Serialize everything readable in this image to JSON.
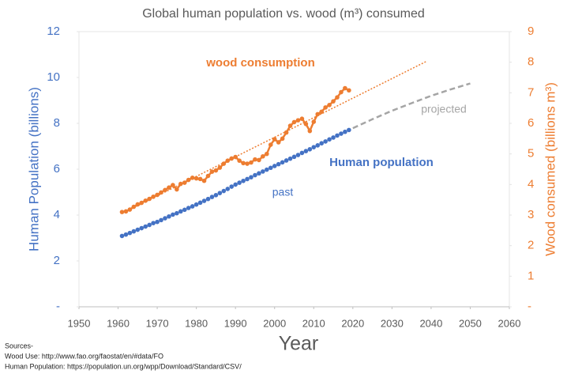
{
  "chart_data": {
    "type": "line",
    "title": "Global human population vs. wood (m³) consumed",
    "xlabel": "Year",
    "ylabel": "Human Population (billions)",
    "y2label": "Wood consumed (billions m³)",
    "xlim": [
      1950,
      2060
    ],
    "xticks": [
      1950,
      1960,
      1970,
      1980,
      1990,
      2000,
      2010,
      2020,
      2030,
      2040,
      2050,
      2060
    ],
    "ylim": [
      0,
      12
    ],
    "yticks": [
      {
        "value": 0,
        "label": "-"
      },
      2,
      4,
      6,
      8,
      10,
      12
    ],
    "y2lim": [
      0,
      9
    ],
    "y2ticks": [
      {
        "value": 0,
        "label": "-"
      },
      1,
      2,
      3,
      4,
      5,
      6,
      7,
      8,
      9
    ],
    "grid": false,
    "annotations": [
      "past"
    ],
    "series": [
      {
        "name": "Human population",
        "color": "#4472c4",
        "line_style": "none",
        "markers": true,
        "x": [
          1961,
          1962,
          1963,
          1964,
          1965,
          1966,
          1967,
          1968,
          1969,
          1970,
          1971,
          1972,
          1973,
          1974,
          1975,
          1976,
          1977,
          1978,
          1979,
          1980,
          1981,
          1982,
          1983,
          1984,
          1985,
          1986,
          1987,
          1988,
          1989,
          1990,
          1991,
          1992,
          1993,
          1994,
          1995,
          1996,
          1997,
          1998,
          1999,
          2000,
          2001,
          2002,
          2003,
          2004,
          2005,
          2006,
          2007,
          2008,
          2009,
          2010,
          2011,
          2012,
          2013,
          2014,
          2015,
          2016,
          2017,
          2018,
          2019
        ],
        "values": [
          3.09,
          3.15,
          3.22,
          3.29,
          3.36,
          3.43,
          3.5,
          3.57,
          3.65,
          3.7,
          3.78,
          3.86,
          3.94,
          4.02,
          4.08,
          4.16,
          4.23,
          4.31,
          4.38,
          4.46,
          4.54,
          4.62,
          4.7,
          4.79,
          4.87,
          4.96,
          5.05,
          5.14,
          5.24,
          5.33,
          5.41,
          5.49,
          5.57,
          5.65,
          5.74,
          5.82,
          5.9,
          5.98,
          6.06,
          6.14,
          6.22,
          6.3,
          6.38,
          6.46,
          6.54,
          6.62,
          6.71,
          6.79,
          6.87,
          6.96,
          7.04,
          7.13,
          7.21,
          7.3,
          7.38,
          7.47,
          7.55,
          7.63,
          7.71
        ]
      },
      {
        "name": "projected",
        "color": "#a5a5a5",
        "line_style": "dashed",
        "markers": false,
        "x": [
          2020,
          2025,
          2030,
          2035,
          2040,
          2045,
          2050
        ],
        "values": [
          7.79,
          8.18,
          8.55,
          8.88,
          9.2,
          9.48,
          9.74
        ]
      },
      {
        "name": "wood consumption",
        "color": "#ed7d31",
        "line_style": "solid",
        "markers": true,
        "axis": "y2",
        "x": [
          1961,
          1962,
          1963,
          1964,
          1965,
          1966,
          1967,
          1968,
          1969,
          1970,
          1971,
          1972,
          1973,
          1974,
          1975,
          1976,
          1977,
          1978,
          1979,
          1980,
          1981,
          1982,
          1983,
          1984,
          1985,
          1986,
          1987,
          1988,
          1989,
          1990,
          1991,
          1992,
          1993,
          1994,
          1995,
          1996,
          1997,
          1998,
          1999,
          2000,
          2001,
          2002,
          2003,
          2004,
          2005,
          2006,
          2007,
          2008,
          2009,
          2010,
          2011,
          2012,
          2013,
          2014,
          2015,
          2016,
          2017,
          2018,
          2019
        ],
        "values": [
          3.1,
          3.12,
          3.18,
          3.27,
          3.35,
          3.4,
          3.47,
          3.53,
          3.6,
          3.66,
          3.74,
          3.82,
          3.9,
          3.98,
          3.84,
          4.02,
          4.06,
          4.15,
          4.22,
          4.2,
          4.18,
          4.12,
          4.28,
          4.42,
          4.46,
          4.55,
          4.68,
          4.78,
          4.85,
          4.9,
          4.78,
          4.7,
          4.68,
          4.72,
          4.82,
          4.8,
          4.92,
          5.0,
          5.3,
          5.48,
          5.38,
          5.5,
          5.7,
          5.92,
          6.04,
          6.1,
          6.15,
          5.98,
          5.75,
          6.05,
          6.3,
          6.38,
          6.52,
          6.6,
          6.72,
          6.85,
          7.02,
          7.15,
          7.08
        ]
      },
      {
        "color": "#ed7d31",
        "line_style": "dotted",
        "markers": false,
        "axis": "y2",
        "x": [
          1961,
          2039
        ],
        "values": [
          3.05,
          8.04
        ]
      }
    ],
    "sources": [
      "Sources-",
      "Wood Use:  http://www.fao.org/faostat/en/#data/FO",
      "Human Population:  https://population.un.org/wpp/Download/Standard/CSV/"
    ]
  }
}
